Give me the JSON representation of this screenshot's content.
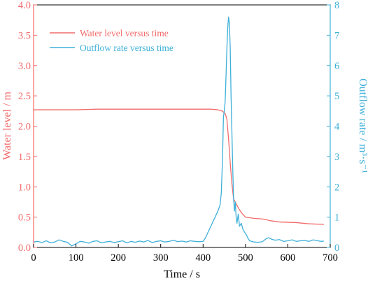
{
  "chart_data": {
    "type": "line",
    "xlabel": "Time / s",
    "ylabel_left": "Water level / m",
    "ylabel_right": "Outflow rate / m³·s⁻¹",
    "xlim": [
      0,
      700
    ],
    "ylim_left": [
      0,
      4.0
    ],
    "ylim_right": [
      0,
      8
    ],
    "x_ticks": [
      "0",
      "100",
      "200",
      "300",
      "400",
      "500",
      "600",
      "700"
    ],
    "y_left_ticks": [
      "0.0",
      "0.5",
      "1.0",
      "1.5",
      "2.0",
      "2.5",
      "3.0",
      "3.5",
      "4.0"
    ],
    "y_right_ticks": [
      "0",
      "1",
      "2",
      "3",
      "4",
      "5",
      "6",
      "7",
      "8"
    ],
    "grid": false,
    "legend_position": "top-left",
    "colors": {
      "left_axis": "#f26b6b",
      "right_axis": "#3fb0d8",
      "x_axis": "#000000"
    },
    "series": [
      {
        "name": "Water level versus time",
        "axis": "left",
        "color": "#f26b6b",
        "points": [
          [
            0,
            2.27
          ],
          [
            50,
            2.27
          ],
          [
            100,
            2.27
          ],
          [
            150,
            2.28
          ],
          [
            200,
            2.28
          ],
          [
            250,
            2.28
          ],
          [
            300,
            2.28
          ],
          [
            350,
            2.28
          ],
          [
            400,
            2.28
          ],
          [
            420,
            2.28
          ],
          [
            435,
            2.27
          ],
          [
            445,
            2.25
          ],
          [
            452,
            2.21
          ],
          [
            456,
            2.12
          ],
          [
            460,
            1.8
          ],
          [
            464,
            1.4
          ],
          [
            468,
            1.05
          ],
          [
            472,
            0.8
          ],
          [
            478,
            0.72
          ],
          [
            485,
            0.63
          ],
          [
            492,
            0.56
          ],
          [
            500,
            0.5
          ],
          [
            520,
            0.48
          ],
          [
            540,
            0.47
          ],
          [
            560,
            0.44
          ],
          [
            580,
            0.42
          ],
          [
            620,
            0.41
          ],
          [
            650,
            0.39
          ],
          [
            685,
            0.38
          ]
        ]
      },
      {
        "name": "Outflow rate versus time",
        "axis": "right",
        "color": "#3fb0d8",
        "points": [
          [
            0,
            0.18
          ],
          [
            10,
            0.2
          ],
          [
            20,
            0.16
          ],
          [
            30,
            0.22
          ],
          [
            40,
            0.15
          ],
          [
            50,
            0.18
          ],
          [
            60,
            0.25
          ],
          [
            70,
            0.2
          ],
          [
            80,
            0.17
          ],
          [
            90,
            0.05
          ],
          [
            100,
            0.12
          ],
          [
            110,
            0.2
          ],
          [
            120,
            0.18
          ],
          [
            130,
            0.14
          ],
          [
            140,
            0.2
          ],
          [
            150,
            0.22
          ],
          [
            160,
            0.15
          ],
          [
            170,
            0.18
          ],
          [
            180,
            0.2
          ],
          [
            190,
            0.16
          ],
          [
            200,
            0.19
          ],
          [
            210,
            0.22
          ],
          [
            220,
            0.15
          ],
          [
            230,
            0.2
          ],
          [
            240,
            0.17
          ],
          [
            250,
            0.21
          ],
          [
            260,
            0.18
          ],
          [
            270,
            0.23
          ],
          [
            280,
            0.16
          ],
          [
            290,
            0.2
          ],
          [
            300,
            0.22
          ],
          [
            310,
            0.18
          ],
          [
            320,
            0.2
          ],
          [
            330,
            0.24
          ],
          [
            340,
            0.19
          ],
          [
            350,
            0.21
          ],
          [
            360,
            0.18
          ],
          [
            370,
            0.22
          ],
          [
            380,
            0.2
          ],
          [
            390,
            0.19
          ],
          [
            400,
            0.2
          ],
          [
            405,
            0.3
          ],
          [
            410,
            0.45
          ],
          [
            415,
            0.6
          ],
          [
            420,
            0.75
          ],
          [
            425,
            0.9
          ],
          [
            430,
            1.05
          ],
          [
            435,
            1.2
          ],
          [
            440,
            1.4
          ],
          [
            443,
            1.8
          ],
          [
            446,
            3.0
          ],
          [
            448,
            4.3
          ],
          [
            450,
            4.5
          ],
          [
            452,
            4.8
          ],
          [
            454,
            5.6
          ],
          [
            456,
            6.5
          ],
          [
            458,
            7.2
          ],
          [
            460,
            7.6
          ],
          [
            462,
            7.4
          ],
          [
            464,
            6.6
          ],
          [
            466,
            5.0
          ],
          [
            468,
            3.8
          ],
          [
            470,
            2.6
          ],
          [
            472,
            1.6
          ],
          [
            474,
            1.2
          ],
          [
            476,
            1.5
          ],
          [
            478,
            1.0
          ],
          [
            480,
            0.8
          ],
          [
            483,
            1.1
          ],
          [
            486,
            0.7
          ],
          [
            490,
            0.8
          ],
          [
            494,
            0.6
          ],
          [
            498,
            0.5
          ],
          [
            502,
            0.42
          ],
          [
            506,
            0.3
          ],
          [
            510,
            0.22
          ],
          [
            520,
            0.18
          ],
          [
            530,
            0.17
          ],
          [
            540,
            0.19
          ],
          [
            550,
            0.3
          ],
          [
            555,
            0.32
          ],
          [
            560,
            0.28
          ],
          [
            570,
            0.24
          ],
          [
            580,
            0.26
          ],
          [
            590,
            0.2
          ],
          [
            600,
            0.22
          ],
          [
            610,
            0.25
          ],
          [
            620,
            0.2
          ],
          [
            630,
            0.22
          ],
          [
            640,
            0.23
          ],
          [
            650,
            0.2
          ],
          [
            660,
            0.25
          ],
          [
            670,
            0.22
          ],
          [
            680,
            0.2
          ],
          [
            685,
            0.21
          ]
        ]
      }
    ]
  }
}
